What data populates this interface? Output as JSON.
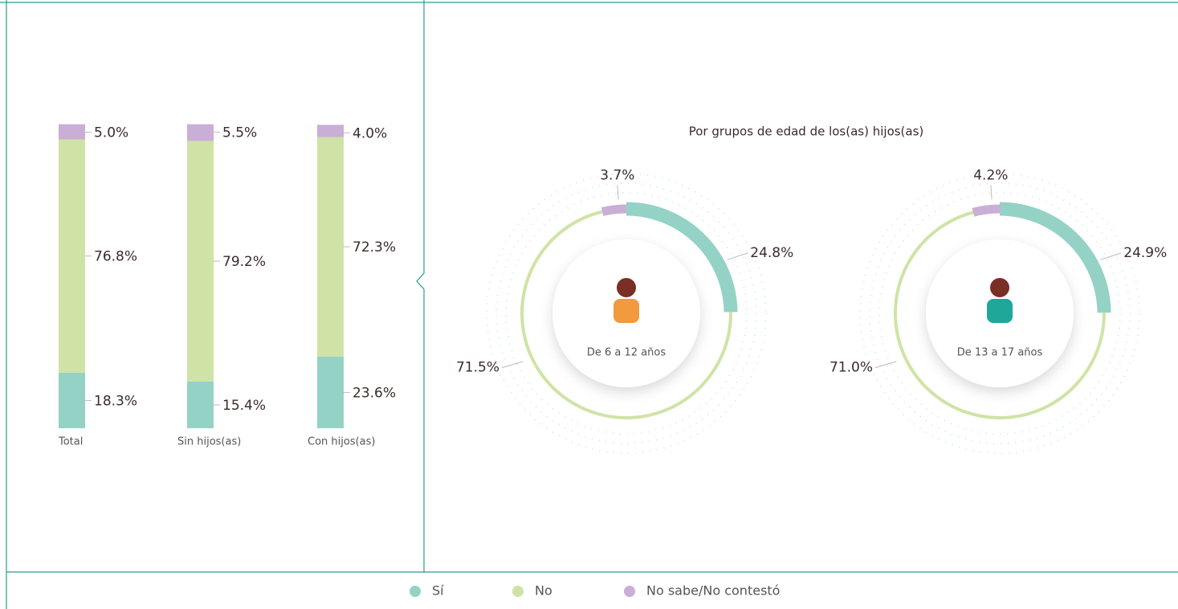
{
  "chart_data": [
    {
      "type": "stacked-bar",
      "categories": [
        "Total",
        "Sin hijos(as)",
        "Con hijos(as)"
      ],
      "series": [
        {
          "name": "Sí",
          "color": "#94d2c6",
          "values": [
            18.3,
            15.4,
            23.6
          ],
          "value_labels": [
            "18.3%",
            "15.4%",
            "23.6%"
          ]
        },
        {
          "name": "No",
          "color": "#cfe3a6",
          "values": [
            76.8,
            79.2,
            72.3
          ],
          "value_labels": [
            "76.8%",
            "79.2%",
            "72.3%"
          ]
        },
        {
          "name": "No sabe/No contestó",
          "color": "#c9aed6",
          "values": [
            5.0,
            5.5,
            4.0
          ],
          "value_labels": [
            "5.0%",
            "5.5%",
            "4.0%"
          ]
        }
      ]
    },
    {
      "type": "donut",
      "title": "Por grupos de edad de los(as) hijos(as)",
      "colors": [
        "#94d2c6",
        "#cfe3a6",
        "#c9aed6"
      ],
      "series": [
        {
          "name": "De 6 a 12 años",
          "values": [
            24.8,
            71.5,
            3.7
          ],
          "value_labels": [
            "24.8%",
            "71.5%",
            "3.7%"
          ]
        },
        {
          "name": "De 13 a 17 años",
          "values": [
            24.9,
            71.0,
            4.2
          ],
          "value_labels": [
            "24.9%",
            "71.0%",
            "4.2%"
          ]
        }
      ]
    }
  ]
}
